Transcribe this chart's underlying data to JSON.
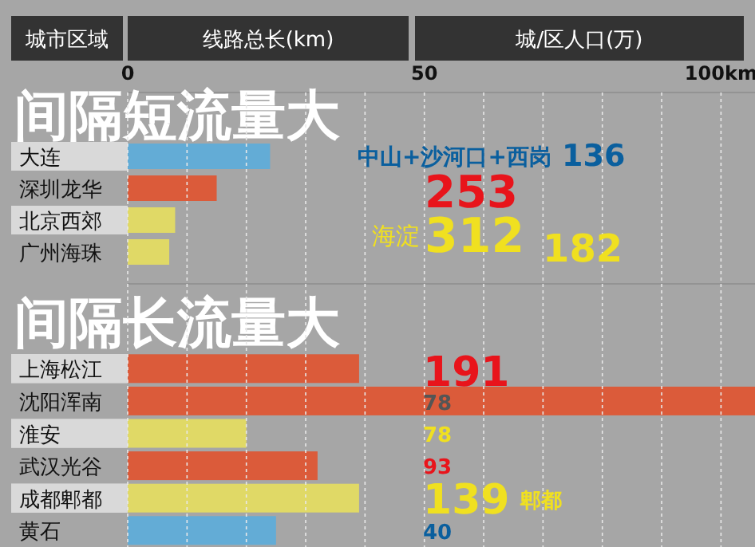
{
  "chart_data": [
    {
      "type": "bar",
      "orientation": "horizontal",
      "title": "间隔短流量大",
      "ylabel": "城市区域",
      "xlabel": "线路总长(km)",
      "categories": [
        "大连",
        "深圳龙华",
        "北京西郊",
        "广州海珠"
      ],
      "values": [
        24,
        15,
        8,
        7
      ],
      "colors": [
        "#63acd6",
        "#db5b3a",
        "#e0d966",
        "#e0d966"
      ],
      "xlim": [
        0,
        106
      ],
      "xticks": [
        0,
        {
          "value": 10,
          "label": null
        },
        {
          "value": 20,
          "label": null
        },
        {
          "value": 30,
          "label": null
        },
        {
          "value": 40,
          "label": null
        },
        50,
        {
          "value": 60,
          "label": null
        },
        {
          "value": 70,
          "label": null
        },
        {
          "value": 80,
          "label": null
        },
        {
          "value": 90,
          "label": null
        },
        {
          "value": 100,
          "label": "100km"
        }
      ],
      "grid": "x",
      "annotations": [
        "城/区人口(万)",
        "中山+沙河口+西岗",
        "136",
        "253",
        "海淀",
        "312",
        "182"
      ]
    },
    {
      "type": "bar",
      "orientation": "horizontal",
      "title": "间隔长流量大",
      "categories": [
        "上海松江",
        "沈阳浑南",
        "淮安",
        "武汉光谷",
        "成都郫都",
        "黄石"
      ],
      "values": [
        39,
        106,
        20,
        32,
        39,
        25
      ],
      "colors": [
        "#db5b3a",
        "#db5b3a",
        "#e0d966",
        "#db5b3a",
        "#e0d966",
        "#63acd6"
      ],
      "xlim": [
        0,
        106
      ],
      "xticks": [
        {
          "value": 0,
          "label": null
        },
        {
          "value": 10,
          "label": null
        },
        {
          "value": 20,
          "label": null
        },
        {
          "value": 30,
          "label": null
        },
        {
          "value": 40,
          "label": null
        },
        {
          "value": 50,
          "label": null
        },
        {
          "value": 60,
          "label": null
        },
        {
          "value": 70,
          "label": null
        },
        {
          "value": 80,
          "label": null
        },
        {
          "value": 90,
          "label": null
        },
        {
          "value": 100,
          "label": null
        }
      ],
      "grid": "x",
      "tick_labels": "y",
      "annotations": [
        "191",
        "78",
        "78",
        "93",
        "139",
        "郫都",
        "40"
      ]
    }
  ]
}
